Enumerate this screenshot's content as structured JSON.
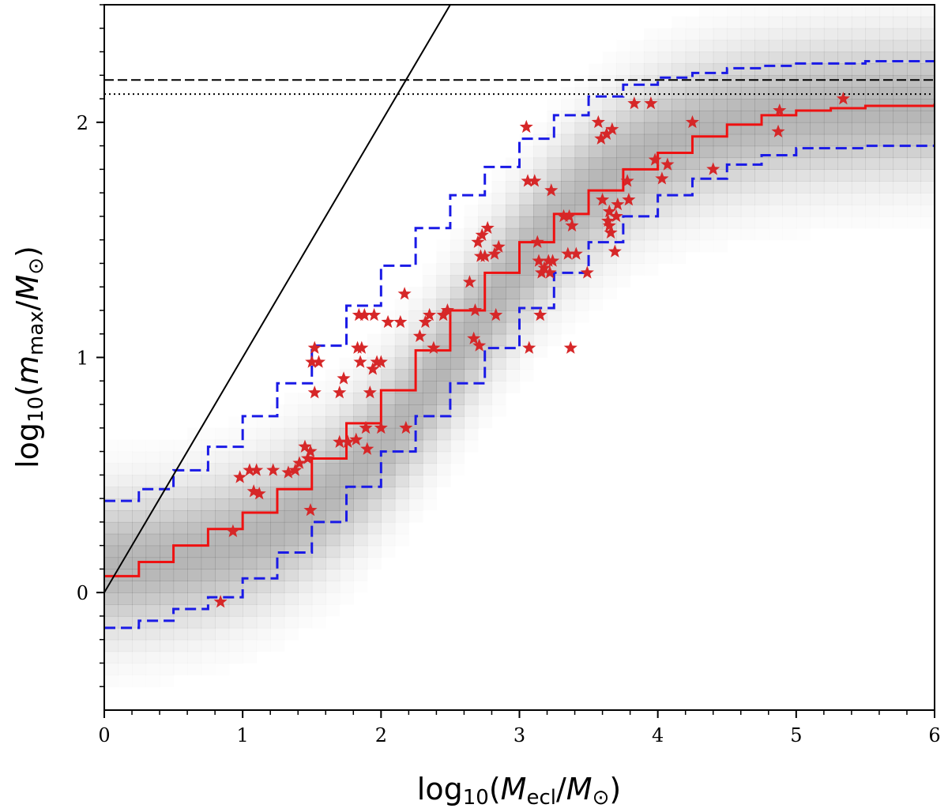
{
  "chart_data": {
    "type": "scatter",
    "xlabel": "log10(Mecl/M⊙)",
    "ylabel": "log10(mmax/M⊙)",
    "xlim": [
      0,
      6
    ],
    "ylim": [
      -0.5,
      2.5
    ],
    "x_ticks": [
      0,
      1,
      2,
      3,
      4,
      5,
      6
    ],
    "x_tick_labels": [
      "0",
      "1",
      "2",
      "3",
      "4",
      "5",
      "6"
    ],
    "y_ticks": [
      0,
      1,
      2
    ],
    "y_tick_labels": [
      "0",
      "1",
      "2"
    ],
    "x_minor_step": 0.2,
    "y_minor_step": 0.1,
    "grid": false,
    "legend": "none",
    "colors": {
      "median": "#ee1111",
      "envelope": "#1a1ae6",
      "stars": "#d62728",
      "reference": "#000000",
      "density": "#808080"
    },
    "density": {
      "description": "grey 2D histogram of simulated clusters",
      "ridge_y0": 0.08,
      "ridge_ymax": 2.08,
      "ridge_xmid": 2.6,
      "ridge_scale": 0.62,
      "width": 0.2
    },
    "series": [
      {
        "style": "solid-step",
        "color_key": "median",
        "x": [
          0,
          0.25,
          0.5,
          0.75,
          1,
          1.25,
          1.5,
          1.75,
          2,
          2.25,
          2.5,
          2.75,
          3,
          3.25,
          3.5,
          3.75,
          4,
          4.25,
          4.5,
          4.75,
          5,
          5.25,
          5.5,
          6
        ],
        "y": [
          0.07,
          0.13,
          0.2,
          0.27,
          0.34,
          0.44,
          0.57,
          0.72,
          0.86,
          1.03,
          1.2,
          1.36,
          1.49,
          1.61,
          1.71,
          1.8,
          1.87,
          1.94,
          1.99,
          2.03,
          2.05,
          2.06,
          2.07,
          2.08
        ]
      },
      {
        "style": "dashed-step",
        "color_key": "envelope",
        "x": [
          0,
          0.25,
          0.5,
          0.75,
          1,
          1.25,
          1.5,
          1.75,
          2,
          2.25,
          2.5,
          2.75,
          3,
          3.25,
          3.5,
          3.75,
          4,
          4.25,
          4.5,
          4.75,
          5,
          5.5,
          6
        ],
        "y": [
          0.39,
          0.44,
          0.52,
          0.62,
          0.75,
          0.89,
          1.05,
          1.22,
          1.39,
          1.55,
          1.69,
          1.81,
          1.93,
          2.03,
          2.11,
          2.16,
          2.19,
          2.21,
          2.23,
          2.24,
          2.25,
          2.26,
          2.26
        ]
      },
      {
        "style": "dashed-step",
        "color_key": "envelope",
        "x": [
          0,
          0.25,
          0.5,
          0.75,
          1,
          1.25,
          1.5,
          1.75,
          2,
          2.25,
          2.5,
          2.75,
          3,
          3.25,
          3.5,
          3.75,
          4,
          4.25,
          4.5,
          4.75,
          5,
          5.5,
          6
        ],
        "y": [
          -0.15,
          -0.12,
          -0.07,
          -0.02,
          0.06,
          0.17,
          0.3,
          0.45,
          0.6,
          0.75,
          0.89,
          1.04,
          1.21,
          1.36,
          1.49,
          1.6,
          1.69,
          1.76,
          1.82,
          1.86,
          1.89,
          1.9,
          1.9
        ]
      },
      {
        "style": "solid",
        "color_key": "reference",
        "x": [
          0,
          2.6
        ],
        "y": [
          0,
          2.6
        ]
      },
      {
        "style": "dashed",
        "color_key": "reference",
        "x": [
          0,
          6
        ],
        "y": [
          2.18,
          2.18
        ]
      },
      {
        "style": "dotted",
        "color_key": "reference",
        "x": [
          0,
          6
        ],
        "y": [
          2.12,
          2.12
        ]
      }
    ],
    "points": [
      [
        0.84,
        -0.04
      ],
      [
        0.93,
        0.26
      ],
      [
        0.98,
        0.49
      ],
      [
        1.05,
        0.52
      ],
      [
        1.08,
        0.43
      ],
      [
        1.1,
        0.52
      ],
      [
        1.12,
        0.42
      ],
      [
        1.22,
        0.52
      ],
      [
        1.33,
        0.51
      ],
      [
        1.38,
        0.52
      ],
      [
        1.41,
        0.55
      ],
      [
        1.45,
        0.62
      ],
      [
        1.47,
        0.57
      ],
      [
        1.49,
        0.6
      ],
      [
        1.49,
        0.35
      ],
      [
        1.5,
        0.98
      ],
      [
        1.52,
        1.04
      ],
      [
        1.52,
        0.85
      ],
      [
        1.55,
        0.98
      ],
      [
        1.7,
        0.85
      ],
      [
        1.7,
        0.64
      ],
      [
        1.73,
        0.91
      ],
      [
        1.76,
        0.64
      ],
      [
        1.82,
        0.65
      ],
      [
        1.83,
        1.04
      ],
      [
        1.84,
        1.18
      ],
      [
        1.85,
        0.98
      ],
      [
        1.86,
        1.04
      ],
      [
        1.88,
        1.18
      ],
      [
        1.89,
        0.7
      ],
      [
        1.9,
        0.61
      ],
      [
        1.92,
        0.85
      ],
      [
        1.94,
        0.95
      ],
      [
        1.95,
        1.18
      ],
      [
        1.97,
        0.98
      ],
      [
        2.0,
        0.98
      ],
      [
        2.0,
        0.7
      ],
      [
        2.05,
        1.15
      ],
      [
        2.14,
        1.15
      ],
      [
        2.17,
        1.27
      ],
      [
        2.18,
        0.7
      ],
      [
        2.28,
        1.09
      ],
      [
        2.32,
        1.15
      ],
      [
        2.35,
        1.18
      ],
      [
        2.38,
        1.04
      ],
      [
        2.45,
        1.18
      ],
      [
        2.48,
        1.2
      ],
      [
        2.64,
        1.32
      ],
      [
        2.67,
        1.08
      ],
      [
        2.68,
        1.2
      ],
      [
        2.7,
        1.49
      ],
      [
        2.71,
        1.05
      ],
      [
        2.72,
        1.43
      ],
      [
        2.73,
        1.52
      ],
      [
        2.75,
        1.43
      ],
      [
        2.77,
        1.55
      ],
      [
        2.82,
        1.44
      ],
      [
        2.83,
        1.18
      ],
      [
        2.85,
        1.47
      ],
      [
        3.05,
        1.98
      ],
      [
        3.06,
        1.75
      ],
      [
        3.07,
        1.04
      ],
      [
        3.11,
        1.75
      ],
      [
        3.13,
        1.49
      ],
      [
        3.14,
        1.41
      ],
      [
        3.15,
        1.18
      ],
      [
        3.16,
        1.36
      ],
      [
        3.18,
        1.38
      ],
      [
        3.21,
        1.41
      ],
      [
        3.22,
        1.36
      ],
      [
        3.23,
        1.71
      ],
      [
        3.24,
        1.41
      ],
      [
        3.32,
        1.6
      ],
      [
        3.35,
        1.44
      ],
      [
        3.36,
        1.6
      ],
      [
        3.37,
        1.04
      ],
      [
        3.38,
        1.56
      ],
      [
        3.41,
        1.44
      ],
      [
        3.49,
        1.36
      ],
      [
        3.57,
        2.0
      ],
      [
        3.59,
        1.93
      ],
      [
        3.6,
        1.67
      ],
      [
        3.63,
        1.95
      ],
      [
        3.64,
        1.58
      ],
      [
        3.65,
        1.62
      ],
      [
        3.65,
        1.56
      ],
      [
        3.66,
        1.53
      ],
      [
        3.67,
        1.97
      ],
      [
        3.69,
        1.45
      ],
      [
        3.7,
        1.6
      ],
      [
        3.71,
        1.65
      ],
      [
        3.78,
        1.75
      ],
      [
        3.79,
        1.67
      ],
      [
        3.83,
        2.08
      ],
      [
        3.95,
        2.08
      ],
      [
        3.98,
        1.84
      ],
      [
        4.03,
        1.76
      ],
      [
        4.07,
        1.82
      ],
      [
        4.25,
        2.0
      ],
      [
        4.4,
        1.8
      ],
      [
        4.87,
        1.96
      ],
      [
        4.88,
        2.05
      ],
      [
        5.34,
        2.1
      ]
    ]
  }
}
